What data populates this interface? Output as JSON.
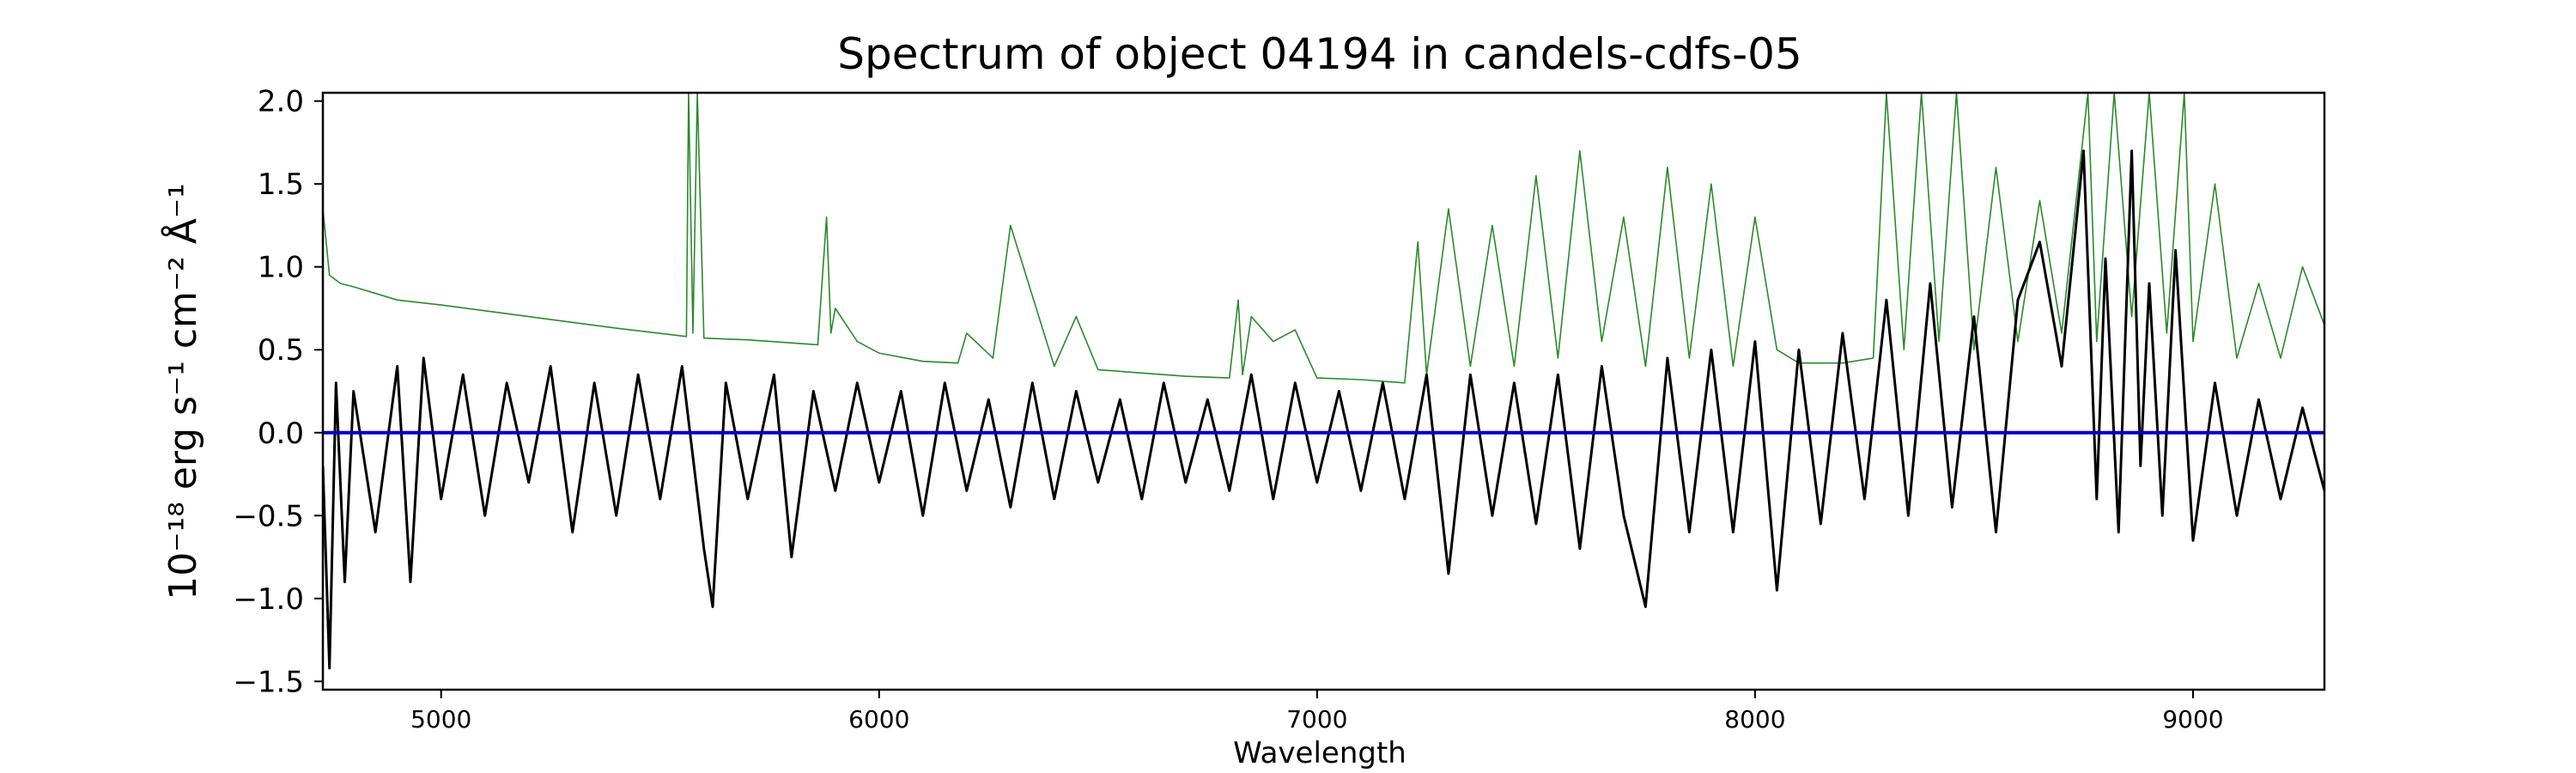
{
  "chart_data": {
    "type": "line",
    "title": "Spectrum of object 04194 in candels-cdfs-05",
    "xlabel": "Wavelength",
    "ylabel": "10⁻¹⁸ erg s⁻¹ cm⁻² Å⁻¹",
    "xlim": [
      4730,
      9300
    ],
    "ylim": [
      -1.55,
      2.05
    ],
    "x_ticks": [
      5000,
      6000,
      7000,
      8000,
      9000
    ],
    "x_tick_labels": [
      "5000",
      "6000",
      "7000",
      "8000",
      "9000"
    ],
    "y_ticks": [
      -1.5,
      -1.0,
      -0.5,
      0.0,
      0.5,
      1.0,
      1.5,
      2.0
    ],
    "y_tick_labels": [
      "−1.5",
      "−1.0",
      "−0.5",
      "0.0",
      "0.5",
      "1.0",
      "1.5",
      "2.0"
    ],
    "grid": false,
    "legend": "none",
    "series": [
      {
        "color": "#2a8a2a",
        "linewidth": 1.6,
        "x": [
          4730,
          4745,
          4770,
          4800,
          4900,
          5000,
          5200,
          5400,
          5560,
          5565,
          5575,
          5585,
          5600,
          5700,
          5860,
          5880,
          5890,
          5900,
          5950,
          6000,
          6100,
          6180,
          6200,
          6260,
          6300,
          6400,
          6450,
          6500,
          6600,
          6700,
          6800,
          6820,
          6830,
          6850,
          6900,
          6950,
          7000,
          7100,
          7200,
          7230,
          7250,
          7300,
          7350,
          7400,
          7450,
          7500,
          7550,
          7600,
          7650,
          7700,
          7750,
          7800,
          7850,
          7900,
          7950,
          8000,
          8050,
          8100,
          8200,
          8270,
          8300,
          8340,
          8380,
          8420,
          8460,
          8500,
          8550,
          8600,
          8650,
          8700,
          8760,
          8780,
          8820,
          8860,
          8900,
          8940,
          8980,
          9000,
          9050,
          9100,
          9150,
          9200,
          9250,
          9300
        ],
        "values": [
          1.35,
          0.95,
          0.9,
          0.88,
          0.8,
          0.77,
          0.7,
          0.63,
          0.58,
          2.05,
          0.6,
          2.05,
          0.57,
          0.56,
          0.53,
          1.3,
          0.6,
          0.75,
          0.55,
          0.48,
          0.43,
          0.42,
          0.6,
          0.45,
          1.25,
          0.4,
          0.7,
          0.38,
          0.36,
          0.34,
          0.33,
          0.8,
          0.35,
          0.7,
          0.55,
          0.62,
          0.33,
          0.32,
          0.3,
          1.15,
          0.35,
          1.35,
          0.4,
          1.25,
          0.4,
          1.55,
          0.45,
          1.7,
          0.55,
          1.3,
          0.4,
          1.6,
          0.45,
          1.5,
          0.4,
          1.3,
          0.5,
          0.42,
          0.42,
          0.45,
          2.05,
          0.5,
          2.05,
          0.55,
          2.05,
          0.5,
          1.6,
          0.55,
          1.4,
          0.6,
          2.05,
          0.55,
          2.05,
          0.7,
          2.05,
          0.6,
          2.05,
          0.55,
          1.5,
          0.45,
          0.9,
          0.45,
          1.0,
          0.65
        ]
      },
      {
        "color": "#000000",
        "linewidth": 3,
        "x": [
          4730,
          4745,
          4760,
          4780,
          4800,
          4850,
          4900,
          4930,
          4960,
          5000,
          5050,
          5100,
          5150,
          5200,
          5250,
          5300,
          5350,
          5400,
          5450,
          5500,
          5550,
          5600,
          5620,
          5650,
          5700,
          5760,
          5800,
          5850,
          5900,
          5950,
          6000,
          6050,
          6100,
          6150,
          6200,
          6250,
          6300,
          6350,
          6400,
          6450,
          6500,
          6550,
          6600,
          6650,
          6700,
          6750,
          6800,
          6850,
          6900,
          6950,
          7000,
          7050,
          7100,
          7150,
          7200,
          7250,
          7300,
          7350,
          7400,
          7450,
          7500,
          7550,
          7600,
          7650,
          7700,
          7750,
          7800,
          7850,
          7900,
          7950,
          8000,
          8050,
          8100,
          8150,
          8200,
          8250,
          8300,
          8350,
          8400,
          8450,
          8500,
          8550,
          8600,
          8650,
          8700,
          8750,
          8780,
          8800,
          8830,
          8860,
          8880,
          8900,
          8930,
          8960,
          9000,
          9050,
          9100,
          9150,
          9200,
          9250,
          9300
        ],
        "values": [
          -0.2,
          -1.42,
          0.3,
          -0.9,
          0.25,
          -0.6,
          0.4,
          -0.9,
          0.45,
          -0.4,
          0.35,
          -0.5,
          0.3,
          -0.3,
          0.4,
          -0.6,
          0.3,
          -0.5,
          0.35,
          -0.4,
          0.4,
          -0.7,
          -1.05,
          0.3,
          -0.4,
          0.35,
          -0.75,
          0.25,
          -0.35,
          0.3,
          -0.3,
          0.25,
          -0.5,
          0.3,
          -0.35,
          0.2,
          -0.45,
          0.3,
          -0.4,
          0.25,
          -0.3,
          0.2,
          -0.4,
          0.3,
          -0.3,
          0.2,
          -0.35,
          0.35,
          -0.4,
          0.3,
          -0.3,
          0.25,
          -0.35,
          0.3,
          -0.4,
          0.35,
          -0.85,
          0.35,
          -0.5,
          0.3,
          -0.55,
          0.35,
          -0.7,
          0.4,
          -0.5,
          -1.05,
          0.45,
          -0.6,
          0.5,
          -0.6,
          0.55,
          -0.95,
          0.5,
          -0.55,
          0.6,
          -0.4,
          0.8,
          -0.5,
          0.9,
          -0.45,
          0.7,
          -0.6,
          0.8,
          1.15,
          0.4,
          1.7,
          -0.4,
          1.05,
          -0.6,
          1.7,
          -0.2,
          0.9,
          -0.5,
          1.1,
          -0.65,
          0.3,
          -0.5,
          0.2,
          -0.4,
          0.15,
          -0.35
        ]
      },
      {
        "color": "#0000cc",
        "linewidth": 4,
        "x": [
          4730,
          9300
        ],
        "values": [
          0.0,
          0.0
        ]
      }
    ]
  }
}
